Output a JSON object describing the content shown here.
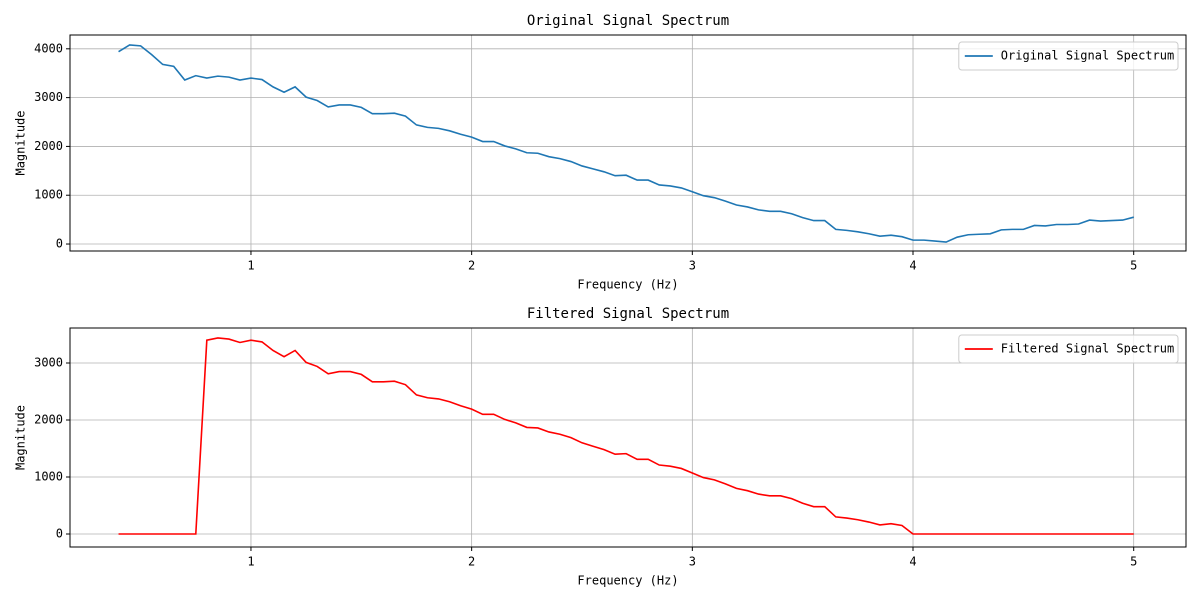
{
  "chart_data": [
    {
      "type": "line",
      "title": "Original Signal Spectrum",
      "xlabel": "Frequency (Hz)",
      "ylabel": "Magnitude",
      "x": [
        0.4,
        0.45,
        0.5,
        0.55,
        0.6,
        0.65,
        0.7,
        0.75,
        0.8,
        0.85,
        0.9,
        0.95,
        1,
        1.05,
        1.1,
        1.15,
        1.2,
        1.25,
        1.3,
        1.35,
        1.4,
        1.45,
        1.5,
        1.55,
        1.6,
        1.65,
        1.7,
        1.75,
        1.8,
        1.85,
        1.9,
        1.95,
        2,
        2.05,
        2.1,
        2.15,
        2.2,
        2.25,
        2.3,
        2.35,
        2.4,
        2.45,
        2.5,
        2.55,
        2.6,
        2.65,
        2.7,
        2.75,
        2.8,
        2.85,
        2.9,
        2.95,
        3,
        3.05,
        3.1,
        3.15,
        3.2,
        3.25,
        3.3,
        3.35,
        3.4,
        3.45,
        3.5,
        3.55,
        3.6,
        3.65,
        3.7,
        3.75,
        3.8,
        3.85,
        3.9,
        3.95,
        4,
        4.05,
        4.1,
        4.15,
        4.2,
        4.25,
        4.3,
        4.35,
        4.4,
        4.45,
        4.5,
        4.55,
        4.6,
        4.65,
        4.7,
        4.75,
        4.8,
        4.85,
        4.9,
        4.95,
        5
      ],
      "series": [
        {
          "name": "Original Signal Spectrum",
          "color": "#1f77b4",
          "values": [
            3940,
            4080,
            4060,
            3880,
            3680,
            3640,
            3360,
            3450,
            3400,
            3440,
            3420,
            3360,
            3400,
            3370,
            3220,
            3110,
            3220,
            3010,
            2940,
            2810,
            2850,
            2850,
            2800,
            2670,
            2670,
            2680,
            2620,
            2440,
            2390,
            2370,
            2320,
            2250,
            2190,
            2100,
            2100,
            2010,
            1950,
            1870,
            1860,
            1790,
            1750,
            1690,
            1600,
            1540,
            1480,
            1400,
            1410,
            1310,
            1310,
            1210,
            1190,
            1150,
            1070,
            990,
            950,
            880,
            800,
            760,
            700,
            670,
            670,
            620,
            540,
            480,
            480,
            300,
            280,
            250,
            210,
            160,
            180,
            150,
            80,
            80,
            60,
            40,
            140,
            190,
            200,
            210,
            290,
            300,
            300,
            380,
            370,
            400,
            400,
            410,
            490,
            470,
            480,
            490,
            550
          ]
        }
      ],
      "xlim": [
        0.18,
        5.237
      ],
      "ylim": [
        -143,
        4283
      ],
      "xticks": [
        1,
        2,
        3,
        4,
        5
      ],
      "yticks": [
        0,
        1000,
        2000,
        3000,
        4000
      ],
      "grid": true,
      "legend": "upper right"
    },
    {
      "type": "line",
      "title": "Filtered Signal Spectrum",
      "xlabel": "Frequency (Hz)",
      "ylabel": "Magnitude",
      "x": [
        0.4,
        0.45,
        0.5,
        0.55,
        0.6,
        0.65,
        0.7,
        0.75,
        0.8,
        0.85,
        0.9,
        0.95,
        1,
        1.05,
        1.1,
        1.15,
        1.2,
        1.25,
        1.3,
        1.35,
        1.4,
        1.45,
        1.5,
        1.55,
        1.6,
        1.65,
        1.7,
        1.75,
        1.8,
        1.85,
        1.9,
        1.95,
        2,
        2.05,
        2.1,
        2.15,
        2.2,
        2.25,
        2.3,
        2.35,
        2.4,
        2.45,
        2.5,
        2.55,
        2.6,
        2.65,
        2.7,
        2.75,
        2.8,
        2.85,
        2.9,
        2.95,
        3,
        3.05,
        3.1,
        3.15,
        3.2,
        3.25,
        3.3,
        3.35,
        3.4,
        3.45,
        3.5,
        3.55,
        3.6,
        3.65,
        3.7,
        3.75,
        3.8,
        3.85,
        3.9,
        3.95,
        4,
        4.05,
        4.1,
        4.15,
        4.2,
        4.25,
        4.3,
        4.35,
        4.4,
        4.45,
        4.5,
        4.55,
        4.6,
        4.65,
        4.7,
        4.75,
        4.8,
        4.85,
        4.9,
        4.95,
        5
      ],
      "series": [
        {
          "name": "Filtered Signal Spectrum",
          "color": "#ff0000",
          "values": [
            0,
            0,
            0,
            0,
            0,
            0,
            0,
            0,
            3400,
            3440,
            3420,
            3360,
            3400,
            3370,
            3220,
            3110,
            3220,
            3010,
            2940,
            2810,
            2850,
            2850,
            2800,
            2670,
            2670,
            2680,
            2620,
            2440,
            2390,
            2370,
            2320,
            2250,
            2190,
            2100,
            2100,
            2010,
            1950,
            1870,
            1860,
            1790,
            1750,
            1690,
            1600,
            1540,
            1480,
            1400,
            1410,
            1310,
            1310,
            1210,
            1190,
            1150,
            1070,
            990,
            950,
            880,
            800,
            760,
            700,
            670,
            670,
            620,
            540,
            480,
            480,
            300,
            280,
            250,
            210,
            160,
            180,
            150,
            0,
            0,
            0,
            0,
            0,
            0,
            0,
            0,
            0,
            0,
            0,
            0,
            0,
            0,
            0,
            0,
            0,
            0,
            0,
            0,
            0
          ]
        }
      ],
      "xlim": [
        0.18,
        5.237
      ],
      "ylim": [
        -228,
        3614
      ],
      "xticks": [
        1,
        2,
        3,
        4,
        5
      ],
      "yticks": [
        0,
        1000,
        2000,
        3000
      ],
      "grid": true,
      "legend": "upper right"
    }
  ]
}
